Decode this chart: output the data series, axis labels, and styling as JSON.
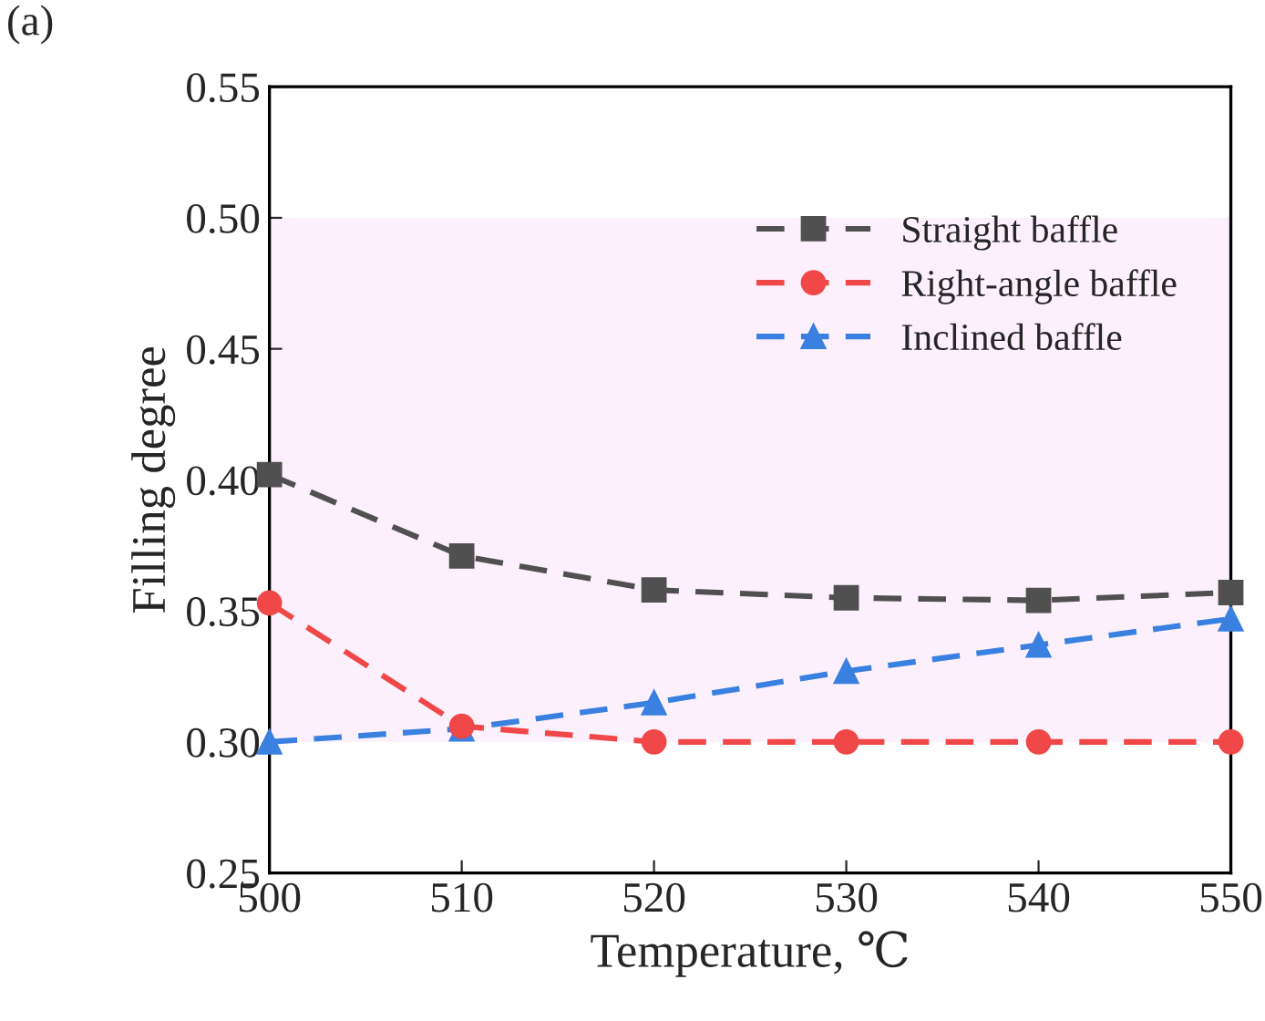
{
  "chart_data": {
    "type": "line",
    "xlabel": "Temperature, ℃",
    "ylabel": "Filling degree",
    "annotations": [
      "(a)"
    ],
    "x": [
      500,
      510,
      520,
      530,
      540,
      550
    ],
    "series": [
      {
        "name": "Straight baffle",
        "color": "#505050",
        "marker": "square",
        "values": [
          0.402,
          0.371,
          0.358,
          0.355,
          0.354,
          0.357
        ]
      },
      {
        "name": "Right-angle baffle",
        "color": "#f04848",
        "marker": "circle",
        "values": [
          0.353,
          0.306,
          0.3,
          0.3,
          0.3,
          0.3
        ]
      },
      {
        "name": "Inclined baffle",
        "color": "#3a80e0",
        "marker": "triangle",
        "values": [
          0.3,
          0.305,
          0.315,
          0.327,
          0.337,
          0.347
        ]
      }
    ],
    "line_style": "dashed",
    "xlim": [
      500,
      550
    ],
    "ylim": [
      0.25,
      0.55
    ],
    "xticks": [
      500,
      510,
      520,
      530,
      540,
      550
    ],
    "yticks": [
      {
        "value": 0.25,
        "label": "0.25"
      },
      {
        "value": 0.3,
        "label": "0.30"
      },
      {
        "value": 0.35,
        "label": "0.35"
      },
      {
        "value": 0.4,
        "label": "0.40"
      },
      {
        "value": 0.45,
        "label": "0.45"
      },
      {
        "value": 0.5,
        "label": "0.50"
      },
      {
        "value": 0.55,
        "label": "0.55"
      }
    ],
    "bands": [
      {
        "axis": "y",
        "from": 0.3,
        "to": 0.5,
        "color": "#fbf0fb"
      }
    ],
    "grid": false,
    "legend": "top right"
  }
}
